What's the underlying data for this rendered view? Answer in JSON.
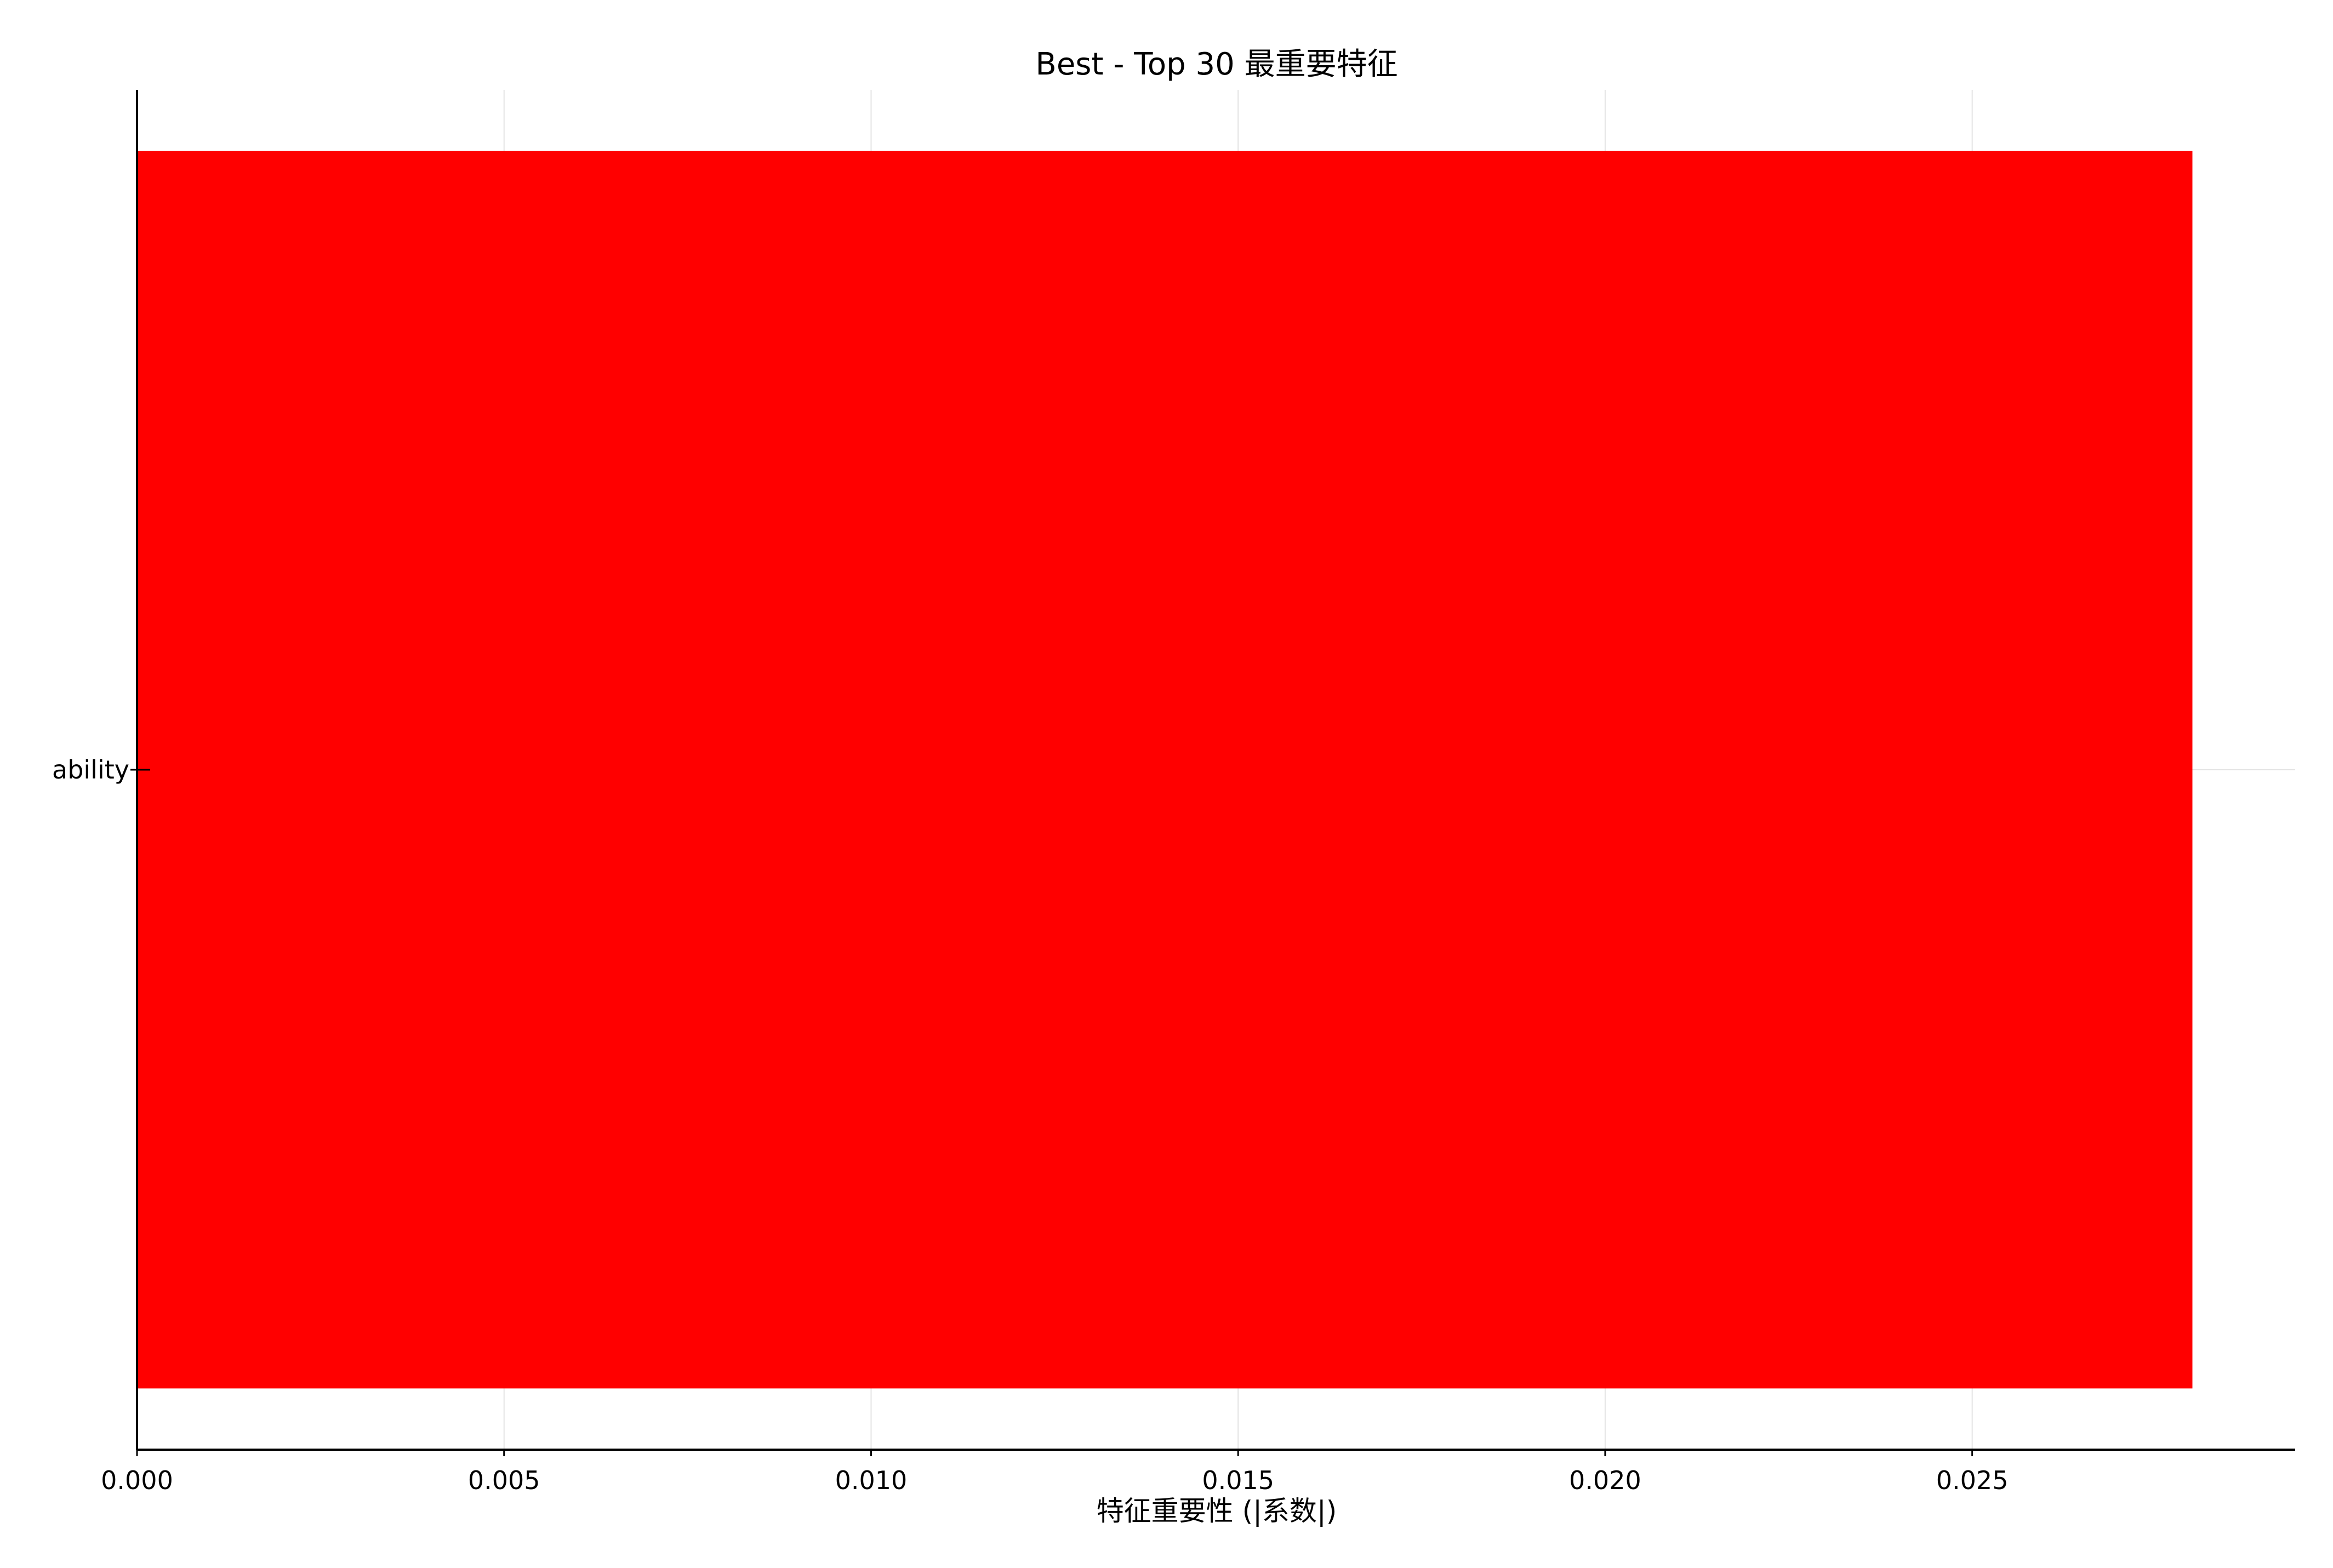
{
  "chart_data": {
    "type": "bar",
    "orientation": "horizontal",
    "title": "Best - Top 30 最重要特征",
    "xlabel": "特征重要性 (|系数|)",
    "ylabel": "",
    "categories": [
      "ability"
    ],
    "values": [
      0.028
    ],
    "xlim": [
      0,
      0.0294
    ],
    "xticks": [
      "0.000",
      "0.005",
      "0.010",
      "0.015",
      "0.020",
      "0.025"
    ],
    "grid": true,
    "bar_color": "#ff0000"
  }
}
